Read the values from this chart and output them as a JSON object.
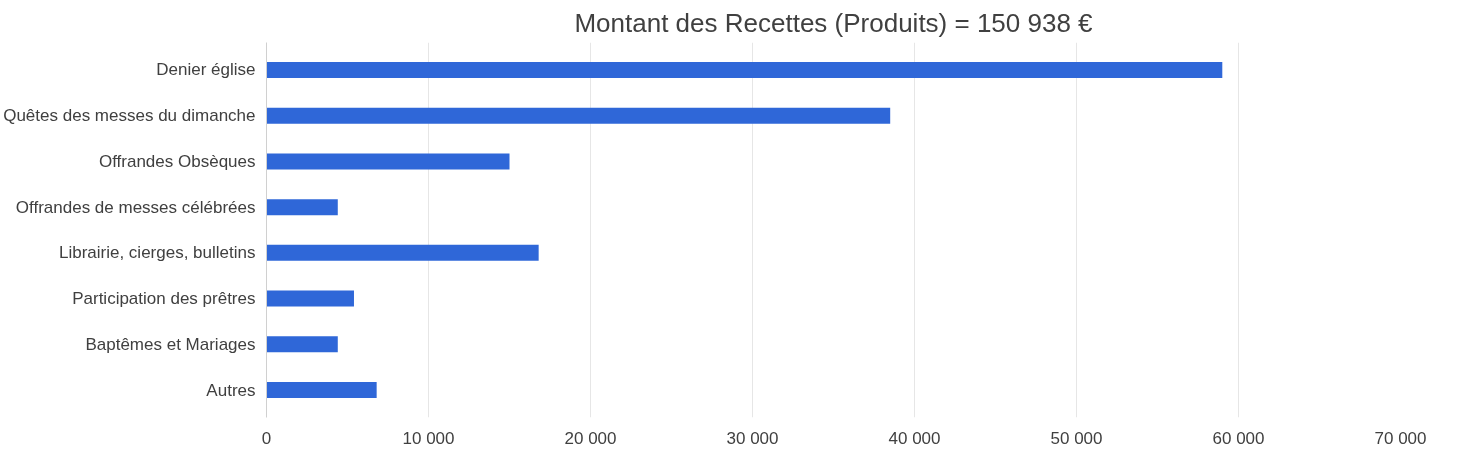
{
  "chart_data": {
    "type": "bar",
    "orientation": "horizontal",
    "title": "Montant des Recettes (Produits) = 150 938 €",
    "categories": [
      "Denier église",
      "Quêtes des messes du dimanche",
      "Offrandes Obsèques",
      "Offrandes de messes célébrées",
      "Librairie, cierges, bulletins",
      "Participation des prêtres",
      "Baptêmes et Mariages",
      "Autres"
    ],
    "values": [
      59000,
      38500,
      15000,
      4400,
      16800,
      5400,
      4400,
      6800
    ],
    "color": "#2f67d8",
    "xlim": [
      0,
      70000
    ],
    "xticks": [
      {
        "value": 0,
        "label": "0"
      },
      {
        "value": 10000,
        "label": "10 000"
      },
      {
        "value": 20000,
        "label": "20 000"
      },
      {
        "value": 30000,
        "label": "30 000"
      },
      {
        "value": 40000,
        "label": "40 000"
      },
      {
        "value": 50000,
        "label": "50 000"
      },
      {
        "value": 60000,
        "label": "60 000"
      },
      {
        "value": 70000,
        "label": "70 000"
      }
    ],
    "grid": "x"
  }
}
